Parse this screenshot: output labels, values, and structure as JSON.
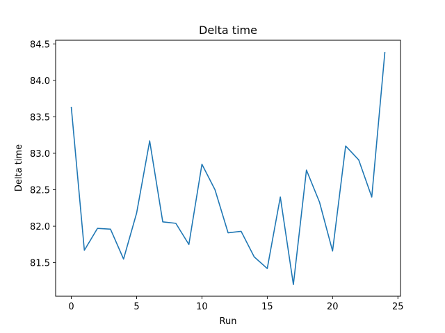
{
  "chart_data": {
    "type": "line",
    "title": "Delta time",
    "xlabel": "Run",
    "ylabel": "Delta time",
    "xlim": [
      -1.2,
      25.2
    ],
    "ylim": [
      81.04,
      84.55
    ],
    "xticks": [
      0,
      5,
      10,
      15,
      20,
      25
    ],
    "xtick_labels": [
      "0",
      "5",
      "10",
      "15",
      "20",
      "25"
    ],
    "yticks": [
      81.5,
      82.0,
      82.5,
      83.0,
      83.5,
      84.0,
      84.5
    ],
    "ytick_labels": [
      "81.5",
      "82.0",
      "82.5",
      "83.0",
      "83.5",
      "84.0",
      "84.5"
    ],
    "grid": false,
    "legend": "none",
    "series": [
      {
        "color": "#1f77b4",
        "x": [
          0,
          1,
          2,
          3,
          4,
          5,
          6,
          7,
          8,
          9,
          10,
          11,
          12,
          13,
          14,
          15,
          16,
          17,
          18,
          19,
          20,
          21,
          22,
          23,
          24
        ],
        "y": [
          83.63,
          81.67,
          81.97,
          81.96,
          81.55,
          82.18,
          83.17,
          82.06,
          82.04,
          81.75,
          82.85,
          82.5,
          81.91,
          81.93,
          81.58,
          81.42,
          82.4,
          81.2,
          82.77,
          82.33,
          81.66,
          83.1,
          82.91,
          82.4,
          84.38
        ]
      }
    ]
  }
}
